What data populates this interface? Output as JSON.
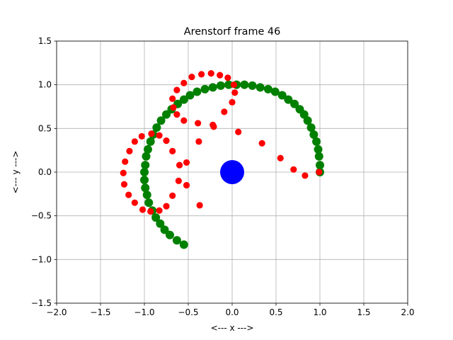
{
  "chart_data": {
    "type": "scatter",
    "title": "Arenstorf frame 46",
    "xlabel": "<---  x  --->",
    "ylabel": "<---  y  --->",
    "xlim": [
      -2.0,
      2.0
    ],
    "ylim": [
      -1.5,
      1.5
    ],
    "xticks": [
      "−2.0",
      "−1.5",
      "−1.0",
      "−0.5",
      "0.0",
      "0.5",
      "1.0",
      "1.5",
      "2.0"
    ],
    "yticks": [
      "−1.5",
      "−1.0",
      "−0.5",
      "0.0",
      "0.5",
      "1.0",
      "1.5"
    ],
    "grid": true,
    "legend": "none",
    "colors": {
      "earth": "#0000ff",
      "moon_path": "#008000",
      "satellite_path": "#ff0000",
      "grid": "#b0b0b0"
    },
    "earth": {
      "x": 0.0,
      "y": 0.0
    },
    "moon_path": {
      "points": [
        [
          1.0,
          0.0
        ],
        [
          1.0,
          0.08
        ],
        [
          0.99,
          0.18
        ],
        [
          0.98,
          0.26
        ],
        [
          0.96,
          0.35
        ],
        [
          0.93,
          0.43
        ],
        [
          0.9,
          0.51
        ],
        [
          0.86,
          0.59
        ],
        [
          0.82,
          0.66
        ],
        [
          0.77,
          0.72
        ],
        [
          0.71,
          0.78
        ],
        [
          0.64,
          0.83
        ],
        [
          0.57,
          0.88
        ],
        [
          0.49,
          0.92
        ],
        [
          0.41,
          0.95
        ],
        [
          0.32,
          0.97
        ],
        [
          0.23,
          0.99
        ],
        [
          0.14,
          1.0
        ],
        [
          0.05,
          1.0
        ],
        [
          -0.04,
          1.0
        ],
        [
          -0.13,
          0.99
        ],
        [
          -0.22,
          0.97
        ],
        [
          -0.31,
          0.95
        ],
        [
          -0.4,
          0.92
        ],
        [
          -0.48,
          0.88
        ],
        [
          -0.55,
          0.83
        ],
        [
          -0.62,
          0.78
        ],
        [
          -0.69,
          0.72
        ],
        [
          -0.75,
          0.66
        ],
        [
          -0.81,
          0.59
        ],
        [
          -0.86,
          0.51
        ],
        [
          -0.9,
          0.43
        ],
        [
          -0.93,
          0.35
        ],
        [
          -0.96,
          0.26
        ],
        [
          -0.98,
          0.18
        ],
        [
          -0.99,
          0.08
        ],
        [
          -1.0,
          0.0
        ],
        [
          -1.0,
          -0.09
        ],
        [
          -0.99,
          -0.18
        ],
        [
          -0.97,
          -0.26
        ],
        [
          -0.95,
          -0.35
        ],
        [
          -0.91,
          -0.44
        ],
        [
          -0.87,
          -0.52
        ],
        [
          -0.82,
          -0.59
        ],
        [
          -0.77,
          -0.66
        ],
        [
          -0.71,
          -0.72
        ],
        [
          -0.63,
          -0.78
        ],
        [
          -0.55,
          -0.83
        ]
      ]
    },
    "satellite_path": {
      "points": [
        [
          0.99,
          0.0
        ],
        [
          0.83,
          -0.04
        ],
        [
          0.7,
          0.03
        ],
        [
          0.55,
          0.16
        ],
        [
          0.34,
          0.33
        ],
        [
          0.07,
          0.46
        ],
        [
          -0.21,
          0.52
        ],
        [
          -0.22,
          0.54
        ],
        [
          -0.39,
          0.56
        ],
        [
          -0.55,
          0.59
        ],
        [
          -0.63,
          0.66
        ],
        [
          -0.67,
          0.74
        ],
        [
          -0.68,
          0.84
        ],
        [
          -0.63,
          0.94
        ],
        [
          -0.55,
          1.02
        ],
        [
          -0.46,
          1.09
        ],
        [
          -0.35,
          1.12
        ],
        [
          -0.24,
          1.13
        ],
        [
          -0.14,
          1.11
        ],
        [
          -0.05,
          1.08
        ],
        [
          0.02,
          1.0
        ],
        [
          0.03,
          0.91
        ],
        [
          0.0,
          0.8
        ],
        [
          -0.09,
          0.69
        ],
        [
          -0.38,
          0.35
        ],
        [
          -0.52,
          0.11
        ],
        [
          -0.6,
          0.08
        ],
        [
          -0.68,
          0.24
        ],
        [
          -0.75,
          0.36
        ],
        [
          -0.83,
          0.42
        ],
        [
          -0.92,
          0.44
        ],
        [
          -1.03,
          0.41
        ],
        [
          -1.11,
          0.35
        ],
        [
          -1.17,
          0.24
        ],
        [
          -1.22,
          0.12
        ],
        [
          -1.24,
          -0.01
        ],
        [
          -1.23,
          -0.14
        ],
        [
          -1.18,
          -0.26
        ],
        [
          -1.11,
          -0.35
        ],
        [
          -1.02,
          -0.43
        ],
        [
          -0.93,
          -0.45
        ],
        [
          -0.83,
          -0.44
        ],
        [
          -0.75,
          -0.39
        ],
        [
          -0.68,
          -0.27
        ],
        [
          -0.61,
          -0.1
        ],
        [
          -0.52,
          -0.15
        ],
        [
          -0.37,
          -0.38
        ]
      ]
    }
  }
}
